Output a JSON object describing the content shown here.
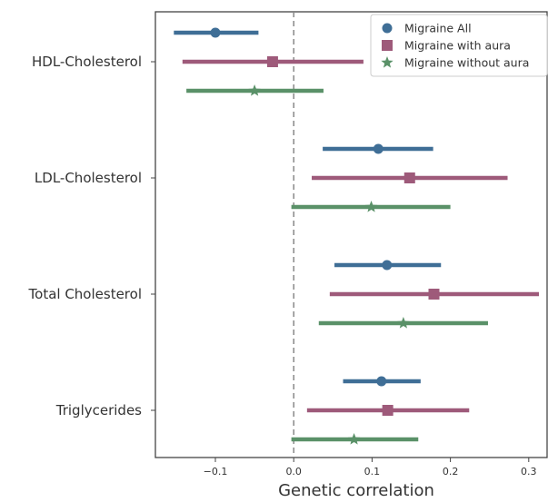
{
  "chart_data": {
    "type": "scatter",
    "subtype": "forest-plot",
    "categories": [
      "HDL-Cholesterol",
      "LDL-Cholesterol",
      "Total Cholesterol",
      "Triglycerides"
    ],
    "series": [
      {
        "name": "Migraine All",
        "color": "#3f6e96",
        "marker": "circle",
        "estimates": [
          -0.1,
          0.108,
          0.119,
          0.112
        ],
        "lower": [
          -0.153,
          0.037,
          0.052,
          0.063
        ],
        "upper": [
          -0.045,
          0.178,
          0.188,
          0.162
        ]
      },
      {
        "name": "Migraine with aura",
        "color": "#9e5a7a",
        "marker": "square",
        "estimates": [
          -0.027,
          0.148,
          0.179,
          0.12
        ],
        "lower": [
          -0.142,
          0.023,
          0.046,
          0.017
        ],
        "upper": [
          0.089,
          0.273,
          0.313,
          0.224
        ]
      },
      {
        "name": "Migraine without aura",
        "color": "#5a9168",
        "marker": "star",
        "estimates": [
          -0.05,
          0.099,
          0.14,
          0.077
        ],
        "lower": [
          -0.137,
          -0.003,
          0.032,
          -0.003
        ],
        "upper": [
          0.038,
          0.2,
          0.248,
          0.159
        ]
      }
    ],
    "xlabel": "Genetic correlation",
    "ylabel": "",
    "xlim": [
      -0.175,
      0.318
    ],
    "xticks": [
      -0.1,
      0.0,
      0.1,
      0.2,
      0.3
    ],
    "xtick_labels": [
      "−0.1",
      "0.0",
      "0.1",
      "0.2",
      "0.3"
    ],
    "reference_line": 0,
    "grid": false,
    "legend_position": "upper right"
  }
}
